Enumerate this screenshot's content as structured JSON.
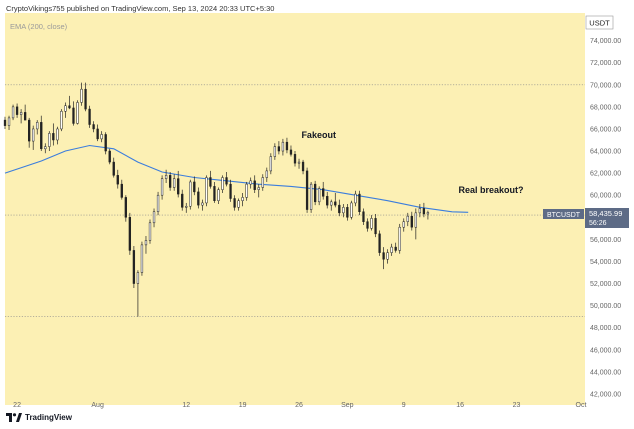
{
  "header": {
    "publisher": "CryptoVikings755 published on TradingView.com, Sep 13, 2024 20:33 UTC+5:30"
  },
  "indicator_label": "EMA (200, close)",
  "currency": "USDT",
  "colors": {
    "background": "#fcf0b4",
    "ema": "#3b7ddd",
    "candle": "#222222",
    "price_box": "#5d6b86",
    "grid_h": "#8a8a8a"
  },
  "footer": {
    "brand": "TradingView"
  },
  "chart_data": {
    "type": "candlestick",
    "y_ticks": [
      "42,000.00",
      "44,000.00",
      "46,000.00",
      "48,000.00",
      "50,000.00",
      "52,000.00",
      "54,000.00",
      "56,000.00",
      "58,000.00",
      "60,000.00",
      "62,000.00",
      "64,000.00",
      "66,000.00",
      "68,000.00",
      "70,000.00",
      "72,000.00",
      "74,000.00"
    ],
    "y_tick_values": [
      42000,
      44000,
      46000,
      48000,
      50000,
      52000,
      54000,
      56000,
      58000,
      60000,
      62000,
      64000,
      66000,
      68000,
      70000,
      72000,
      74000
    ],
    "ylim": [
      41000,
      76500
    ],
    "x_ticks": [
      "22",
      "Aug",
      "12",
      "19",
      "26",
      "Sep",
      "9",
      "16",
      "23",
      "Oct"
    ],
    "x_tick_days": [
      0,
      10,
      21,
      28,
      35,
      41,
      48,
      55,
      62,
      70
    ],
    "xlim": [
      -1.5,
      70.5
    ],
    "horizontal_levels": [
      70000,
      58200,
      49000
    ],
    "annotations": [
      {
        "text": "Fakeout",
        "day": 35.3,
        "price": 65200
      },
      {
        "text": "Real breakout?",
        "day": 54.8,
        "price": 60200
      }
    ],
    "price_tag": {
      "symbol": "BTCUSDT",
      "price": "58,435.99",
      "countdown": "56:26",
      "value": 58436
    },
    "ema": [
      [
        -1.5,
        62000
      ],
      [
        3,
        63100
      ],
      [
        6,
        64000
      ],
      [
        9,
        64500
      ],
      [
        12,
        64200
      ],
      [
        15,
        63000
      ],
      [
        18,
        62100
      ],
      [
        22,
        61600
      ],
      [
        26,
        61300
      ],
      [
        30,
        61000
      ],
      [
        34,
        60800
      ],
      [
        38,
        60500
      ],
      [
        42,
        60000
      ],
      [
        46,
        59500
      ],
      [
        50,
        58900
      ],
      [
        54,
        58500
      ],
      [
        56,
        58450
      ]
    ],
    "candles": [
      [
        -1.5,
        66800,
        67100,
        66000,
        66300
      ],
      [
        -1,
        66300,
        67200,
        65900,
        67000
      ],
      [
        -0.5,
        67000,
        68200,
        66800,
        68000
      ],
      [
        0,
        68000,
        68300,
        67000,
        67300
      ],
      [
        0.5,
        67300,
        67800,
        66500,
        67500
      ],
      [
        1,
        67500,
        68200,
        67100,
        66800
      ],
      [
        1.5,
        66800,
        67000,
        64300,
        64900
      ],
      [
        2,
        64900,
        66300,
        64100,
        66000
      ],
      [
        2.5,
        66000,
        66800,
        65500,
        66600
      ],
      [
        3,
        66600,
        67200,
        64000,
        64200
      ],
      [
        3.5,
        64200,
        64700,
        63800,
        64400
      ],
      [
        4,
        64400,
        65800,
        64000,
        65600
      ],
      [
        4.5,
        65600,
        66500,
        64500,
        65000
      ],
      [
        5,
        65000,
        66200,
        64600,
        66000
      ],
      [
        5.5,
        66000,
        67800,
        65800,
        67600
      ],
      [
        6,
        67600,
        68400,
        67000,
        68100
      ],
      [
        6.5,
        68100,
        69000,
        67800,
        67900
      ],
      [
        7,
        67900,
        68500,
        66300,
        66500
      ],
      [
        7.5,
        66500,
        68600,
        66400,
        68400
      ],
      [
        8,
        68400,
        70200,
        68100,
        69600
      ],
      [
        8.5,
        69600,
        70200,
        67600,
        67800
      ],
      [
        9,
        67800,
        68100,
        66100,
        66400
      ],
      [
        9.5,
        66400,
        66700,
        65700,
        66000
      ],
      [
        10,
        66000,
        66400,
        64900,
        65100
      ],
      [
        10.5,
        65100,
        65800,
        64800,
        65500
      ],
      [
        11,
        65500,
        65700,
        63700,
        64000
      ],
      [
        11.5,
        64000,
        64200,
        62800,
        63000
      ],
      [
        12,
        63000,
        63400,
        61600,
        61800
      ],
      [
        12.5,
        61800,
        62300,
        60600,
        61000
      ],
      [
        13,
        61000,
        61400,
        59600,
        59800
      ],
      [
        13.5,
        59800,
        60000,
        57600,
        58000
      ],
      [
        14,
        58000,
        58400,
        54600,
        55000
      ],
      [
        14.5,
        55000,
        55400,
        51600,
        52000
      ],
      [
        15,
        52000,
        53200,
        49000,
        53000
      ],
      [
        15.5,
        53000,
        55800,
        52700,
        55500
      ],
      [
        16,
        55500,
        56300,
        54700,
        55900
      ],
      [
        16.5,
        55900,
        57800,
        55600,
        57500
      ],
      [
        17,
        57500,
        58800,
        57100,
        58500
      ],
      [
        17.5,
        58500,
        60300,
        58200,
        60000
      ],
      [
        18,
        60000,
        61800,
        59600,
        61500
      ],
      [
        18.5,
        61500,
        62300,
        61100,
        61800
      ],
      [
        19,
        61800,
        62100,
        60400,
        60700
      ],
      [
        19.5,
        60700,
        61900,
        60400,
        61500
      ],
      [
        20,
        61500,
        62200,
        59800,
        60100
      ],
      [
        20.5,
        60100,
        60500,
        58600,
        58900
      ],
      [
        21,
        58900,
        59300,
        58400,
        59000
      ],
      [
        21.5,
        59000,
        61400,
        58700,
        61200
      ],
      [
        22,
        61200,
        61700,
        60000,
        60300
      ],
      [
        22.5,
        60300,
        60700,
        58800,
        59100
      ],
      [
        23,
        59100,
        59600,
        58600,
        59300
      ],
      [
        23.5,
        59300,
        61800,
        59000,
        61600
      ],
      [
        24,
        61600,
        62200,
        60600,
        60800
      ],
      [
        24.5,
        60800,
        61200,
        59300,
        59500
      ],
      [
        25,
        59500,
        60700,
        59200,
        60500
      ],
      [
        25.5,
        60500,
        61800,
        60200,
        61600
      ],
      [
        26,
        61600,
        62100,
        60800,
        61000
      ],
      [
        26.5,
        61000,
        61400,
        59400,
        59700
      ],
      [
        27,
        59700,
        60000,
        58600,
        58900
      ],
      [
        27.5,
        58900,
        59700,
        58600,
        59500
      ],
      [
        28,
        59500,
        60200,
        59000,
        59800
      ],
      [
        28.5,
        59800,
        61200,
        59500,
        61000
      ],
      [
        29,
        61000,
        61600,
        60600,
        61300
      ],
      [
        29.5,
        61300,
        61800,
        60200,
        60500
      ],
      [
        30,
        60500,
        61000,
        59800,
        60700
      ],
      [
        30.5,
        60700,
        61900,
        60400,
        61600
      ],
      [
        31,
        61600,
        62500,
        61200,
        62200
      ],
      [
        31.5,
        62200,
        63800,
        61900,
        63500
      ],
      [
        32,
        63500,
        64700,
        63200,
        64400
      ],
      [
        32.5,
        64400,
        64900,
        63700,
        64000
      ],
      [
        33,
        64000,
        65100,
        63600,
        64800
      ],
      [
        33.5,
        64800,
        65200,
        63800,
        64100
      ],
      [
        34,
        64100,
        64500,
        63500,
        63700
      ],
      [
        34.5,
        63700,
        64000,
        62600,
        62900
      ],
      [
        35,
        62900,
        63300,
        62400,
        63000
      ],
      [
        35.5,
        63000,
        63200,
        61900,
        62200
      ],
      [
        36,
        62200,
        62500,
        58400,
        58700
      ],
      [
        36.5,
        58700,
        61200,
        58400,
        61000
      ],
      [
        37,
        61000,
        61300,
        59100,
        59400
      ],
      [
        37.5,
        59400,
        60800,
        59100,
        60600
      ],
      [
        38,
        60600,
        61200,
        59600,
        59900
      ],
      [
        38.5,
        59900,
        60300,
        58800,
        59100
      ],
      [
        39,
        59100,
        59600,
        58600,
        59400
      ],
      [
        39.5,
        59400,
        60200,
        58900,
        59100
      ],
      [
        40,
        59100,
        59600,
        58100,
        58400
      ],
      [
        40.5,
        58400,
        59200,
        58000,
        58900
      ],
      [
        41,
        58900,
        59200,
        57700,
        58000
      ],
      [
        41.5,
        58000,
        59500,
        57800,
        59300
      ],
      [
        42,
        59300,
        60400,
        59000,
        60100
      ],
      [
        42.5,
        60100,
        60400,
        58200,
        58500
      ],
      [
        43,
        58500,
        58800,
        57300,
        57600
      ],
      [
        43.5,
        57600,
        57900,
        56700,
        57000
      ],
      [
        44,
        57000,
        58200,
        56800,
        57900
      ],
      [
        44.5,
        57900,
        58300,
        56200,
        56500
      ],
      [
        45,
        56500,
        56800,
        54500,
        54800
      ],
      [
        45.5,
        54800,
        55300,
        53300,
        54200
      ],
      [
        46,
        54200,
        55100,
        53800,
        54800
      ],
      [
        46.5,
        54800,
        55600,
        54500,
        55300
      ],
      [
        47,
        55300,
        55700,
        54800,
        55000
      ],
      [
        47.5,
        55000,
        57400,
        54700,
        57100
      ],
      [
        48,
        57100,
        57900,
        56700,
        57600
      ],
      [
        48.5,
        57600,
        58400,
        57200,
        58100
      ],
      [
        49,
        58100,
        58500,
        56800,
        57100
      ],
      [
        49.5,
        57100,
        58800,
        56000,
        58400
      ],
      [
        50,
        58400,
        59200,
        58000,
        58800
      ],
      [
        50.5,
        58800,
        59300,
        58000,
        58300
      ],
      [
        51,
        58300,
        58600,
        57800,
        58436
      ]
    ]
  }
}
